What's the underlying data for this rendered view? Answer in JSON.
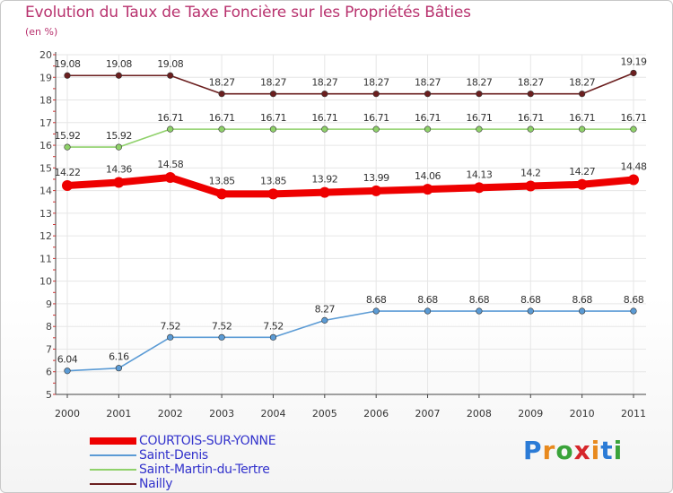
{
  "chart_data": {
    "type": "line",
    "title": "Evolution du Taux de Taxe Foncière sur les Propriétés Bâties",
    "ylabel": "(en %)",
    "xlabel": "",
    "x": [
      "2000",
      "2001",
      "2002",
      "2003",
      "2004",
      "2005",
      "2006",
      "2007",
      "2008",
      "2009",
      "2010",
      "2011"
    ],
    "ylim": [
      5,
      20
    ],
    "yticks": [
      "5",
      "6",
      "7",
      "8",
      "9",
      "10",
      "11",
      "12",
      "13",
      "14",
      "15",
      "16",
      "17",
      "18",
      "19",
      "20"
    ],
    "grid": true,
    "legend_position": "bottom-left",
    "series": [
      {
        "name": "Nailly",
        "color": "#6b1f1f",
        "values": [
          19.08,
          19.08,
          19.08,
          18.27,
          18.27,
          18.27,
          18.27,
          18.27,
          18.27,
          18.27,
          18.27,
          19.19
        ],
        "labels": [
          "19.08",
          "19.08",
          "19.08",
          "18.27",
          "18.27",
          "18.27",
          "18.27",
          "18.27",
          "18.27",
          "18.27",
          "18.27",
          "19.19"
        ]
      },
      {
        "name": "Saint-Martin-du-Tertre",
        "color": "#8fd16a",
        "values": [
          15.92,
          15.92,
          16.71,
          16.71,
          16.71,
          16.71,
          16.71,
          16.71,
          16.71,
          16.71,
          16.71,
          16.71
        ],
        "labels": [
          "15.92",
          "15.92",
          "16.71",
          "16.71",
          "16.71",
          "16.71",
          "16.71",
          "16.71",
          "16.71",
          "16.71",
          "16.71",
          "16.71"
        ]
      },
      {
        "name": "COURTOIS-SUR-YONNE",
        "color": "#ee0000",
        "values": [
          14.22,
          14.36,
          14.58,
          13.85,
          13.85,
          13.92,
          13.99,
          14.06,
          14.13,
          14.2,
          14.27,
          14.48
        ],
        "labels": [
          "14.22",
          "14.36",
          "14.58",
          "13.85",
          "13.85",
          "13.92",
          "13.99",
          "14.06",
          "14.13",
          "14.2",
          "14.27",
          "14.48"
        ]
      },
      {
        "name": "Saint-Denis",
        "color": "#5b9bd5",
        "values": [
          6.04,
          6.16,
          7.52,
          7.52,
          7.52,
          8.27,
          8.68,
          8.68,
          8.68,
          8.68,
          8.68,
          8.68
        ],
        "labels": [
          "6.04",
          "6.16",
          "7.52",
          "7.52",
          "7.52",
          "8.27",
          "8.68",
          "8.68",
          "8.68",
          "8.68",
          "8.68",
          "8.68"
        ]
      }
    ]
  },
  "legend": [
    {
      "name": "COURTOIS-SUR-YONNE",
      "color": "#ee0000",
      "style": "thick"
    },
    {
      "name": "Saint-Denis",
      "color": "#5b9bd5",
      "style": "thin"
    },
    {
      "name": "Saint-Martin-du-Tertre",
      "color": "#8fd16a",
      "style": "thin"
    },
    {
      "name": "Nailly",
      "color": "#6b1f1f",
      "style": "thin"
    }
  ],
  "brand": {
    "letters": [
      "P",
      "r",
      "o",
      "x",
      "i",
      "t",
      "i"
    ],
    "colors": [
      "#2b7bd6",
      "#e8891d",
      "#3aa33a",
      "#d6262b",
      "#e8891d",
      "#2b7bd6",
      "#3aa33a"
    ]
  }
}
